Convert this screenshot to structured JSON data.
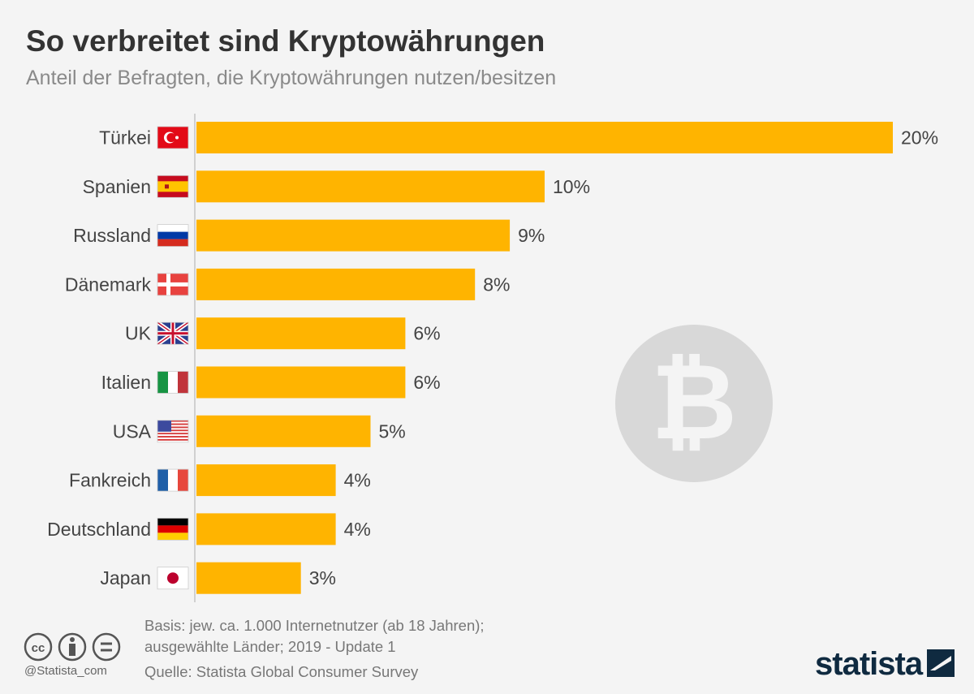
{
  "header": {
    "title": "So verbreitet sind Kryptowährungen",
    "subtitle": "Anteil der Befragten, die Kryptowährungen nutzen/besitzen"
  },
  "chart_data": {
    "type": "bar",
    "orientation": "horizontal",
    "categories": [
      "Türkei",
      "Spanien",
      "Russland",
      "Dänemark",
      "UK",
      "Italien",
      "USA",
      "Fankreich",
      "Deutschland",
      "Japan"
    ],
    "values": [
      20,
      10,
      9,
      8,
      6,
      6,
      5,
      4,
      4,
      3
    ],
    "value_labels": [
      "20%",
      "10%",
      "9%",
      "8%",
      "6%",
      "6%",
      "5%",
      "4%",
      "4%",
      "3%"
    ],
    "flags": [
      "turkey",
      "spain",
      "russia",
      "denmark",
      "uk",
      "italy",
      "usa",
      "france",
      "germany",
      "japan"
    ],
    "xlim": [
      0,
      20
    ],
    "grid": false,
    "bar_color": "#ffb400"
  },
  "footer": {
    "basis_line1": "Basis: jew. ca. 1.000 Internetnutzer (ab 18 Jahren);",
    "basis_line2": "ausgewählte Länder; 2019 - Update 1",
    "source": "Quelle: Statista Global Consumer Survey",
    "handle": "@Statista_com",
    "logo": "statista",
    "license_icons": [
      "cc-icon",
      "by-icon",
      "nd-icon"
    ]
  }
}
